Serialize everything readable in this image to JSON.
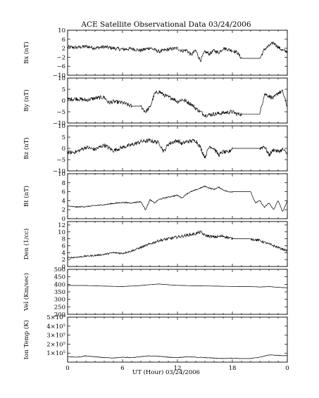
{
  "chart_data": {
    "type": "line",
    "title": "ACE Satellite Observational Data   03/24/2006",
    "xlabel": "UT (Hour)   03/24/2006",
    "x_ticks": [
      "0",
      "6",
      "12",
      "18",
      "0"
    ],
    "xlim": [
      0,
      24
    ],
    "panels": [
      {
        "ylabel": "Bx (nT)",
        "ylim": [
          -10,
          10
        ],
        "y_tick_values": [
          -10,
          -6,
          -2,
          2,
          6,
          10
        ],
        "y_tick_labels": [
          "−10",
          "−6",
          "−2",
          "2",
          "6",
          "10"
        ],
        "series": [
          {
            "x": [
              0,
              1,
              2,
              3,
              4,
              5,
              6,
              7,
              8,
              9,
              10,
              11,
              12,
              12.5,
              13,
              13.5,
              14,
              14.5,
              15,
              15.5,
              16,
              16.5,
              17,
              17.5,
              18,
              18.5,
              19,
              20,
              21,
              21.5,
              22,
              22.5,
              23,
              23.5,
              24
            ],
            "y": [
              2.5,
              2.3,
              2.8,
              2.1,
              2.6,
              2.0,
              1.5,
              1.8,
              1.0,
              2.2,
              0.5,
              1.5,
              2.0,
              0.8,
              1.2,
              -1.0,
              1.0,
              -3.5,
              0.5,
              -0.5,
              1.0,
              0.0,
              2.0,
              1.5,
              1.0,
              0.2,
              -2.5,
              -2.5,
              -2.5,
              1.5,
              3.0,
              4.5,
              2.5,
              1.0,
              0.5
            ]
          }
        ]
      },
      {
        "ylabel": "By (nT)",
        "ylim": [
          -10,
          10
        ],
        "y_tick_values": [
          -10,
          -5,
          0,
          5,
          10
        ],
        "y_tick_labels": [
          "−10",
          "−5",
          "0",
          "5",
          "10"
        ],
        "series": [
          {
            "x": [
              0,
              1,
              2,
              3,
              4,
              4.5,
              5,
              6,
              7,
              8,
              8.5,
              9,
              9.5,
              10,
              10.5,
              11,
              11.5,
              12,
              12.5,
              13,
              13.5,
              14,
              15,
              16,
              17,
              18,
              18.5,
              19,
              20,
              21,
              21.5,
              22,
              22.5,
              23,
              23.5,
              24
            ],
            "y": [
              0.5,
              0.8,
              0.2,
              1.0,
              1.5,
              -1.0,
              -0.5,
              -1.0,
              -2.5,
              -2.5,
              -5.0,
              -3.0,
              3.0,
              4.0,
              2.5,
              1.5,
              1.0,
              -0.5,
              0.5,
              -0.5,
              -1.5,
              -3.5,
              -6.5,
              -6.0,
              -5.5,
              -5.0,
              -6.0,
              -6.0,
              -6.0,
              -6.0,
              3.0,
              2.0,
              1.0,
              3.5,
              4.0,
              -3.0
            ]
          }
        ]
      },
      {
        "ylabel": "Bz (nT)",
        "ylim": [
          -10,
          10
        ],
        "y_tick_values": [
          -10,
          -5,
          0,
          5,
          10
        ],
        "y_tick_labels": [
          "−10",
          "−5",
          "0",
          "5",
          "10"
        ],
        "series": [
          {
            "x": [
              0,
              1,
              2,
              3,
              4,
              5,
              6,
              7,
              8,
              9,
              10,
              10.5,
              11,
              12,
              12.5,
              13,
              14,
              14.5,
              15,
              15.5,
              16,
              16.5,
              17,
              17.5,
              18,
              19,
              20,
              21,
              21.5,
              22,
              22.5,
              23,
              23.5,
              24
            ],
            "y": [
              -2.0,
              -1.5,
              0.5,
              -0.5,
              1.5,
              -1.0,
              0.5,
              1.5,
              3.0,
              3.5,
              2.5,
              -1.5,
              2.0,
              3.5,
              2.0,
              3.0,
              3.5,
              0.5,
              -4.0,
              1.0,
              0.0,
              -3.0,
              -1.5,
              -2.0,
              0.0,
              0.0,
              0.0,
              0.0,
              1.0,
              -3.0,
              -0.5,
              -1.5,
              -0.5,
              -2.5
            ]
          }
        ]
      },
      {
        "ylabel": "Bt (nT)",
        "ylim": [
          0,
          10
        ],
        "y_tick_values": [
          0,
          2,
          4,
          6,
          8,
          10
        ],
        "y_tick_labels": [
          "0",
          "2",
          "4",
          "6",
          "8",
          "10"
        ],
        "series": [
          {
            "x": [
              0,
              1,
              2,
              3,
              4,
              5,
              6,
              7,
              8,
              8.5,
              9,
              9.5,
              10,
              11,
              12,
              12.5,
              13,
              13.5,
              14,
              15,
              15.5,
              16,
              16.5,
              17,
              17.5,
              18,
              19,
              20,
              20.5,
              21,
              21.5,
              22,
              22.5,
              23,
              23.5,
              24
            ],
            "y": [
              2.8,
              2.6,
              2.7,
              2.9,
              3.1,
              3.4,
              3.6,
              3.5,
              3.8,
              2.0,
              4.2,
              3.5,
              4.3,
              4.8,
              5.2,
              4.6,
              5.5,
              6.0,
              6.4,
              7.2,
              6.8,
              6.5,
              7.0,
              6.4,
              6.0,
              6.0,
              6.0,
              6.0,
              3.5,
              4.0,
              2.5,
              3.5,
              2.0,
              4.0,
              1.5,
              4.0
            ]
          }
        ]
      },
      {
        "ylabel": "Den (1/cc)",
        "ylim": [
          0,
          13
        ],
        "y_tick_values": [
          0,
          2,
          4,
          6,
          8,
          10,
          12
        ],
        "y_tick_labels": [
          "0",
          "2",
          "4",
          "6",
          "8",
          "10",
          "12"
        ],
        "series": [
          {
            "x": [
              0,
              1,
              2,
              3,
              4,
              5,
              6,
              7,
              8,
              9,
              10,
              11,
              12,
              13,
              14,
              14.5,
              15,
              16,
              17,
              18,
              19,
              20,
              21,
              22,
              23,
              24
            ],
            "y": [
              2.5,
              2.7,
              3.0,
              3.2,
              3.5,
              4.0,
              3.8,
              4.5,
              5.5,
              6.5,
              7.5,
              8.0,
              8.5,
              9.0,
              9.5,
              10.0,
              9.0,
              8.5,
              8.8,
              8.0,
              8.0,
              8.0,
              7.5,
              6.5,
              5.5,
              4.5
            ]
          }
        ]
      },
      {
        "ylabel": "Vel (Km/sec)",
        "ylim": [
          200,
          500
        ],
        "y_tick_values": [
          200,
          250,
          300,
          350,
          400,
          450,
          500
        ],
        "y_tick_labels": [
          "200",
          "250",
          "300",
          "350",
          "400",
          "450",
          "500"
        ],
        "series": [
          {
            "x": [
              0,
              2,
              4,
              6,
              8,
              9,
              10,
              11,
              12,
              14,
              16,
              18,
              19,
              20,
              21,
              22,
              23,
              24
            ],
            "y": [
              392,
              392,
              388,
              385,
              392,
              398,
              402,
              397,
              393,
              390,
              388,
              386,
              385,
              385,
              382,
              385,
              380,
              377
            ]
          }
        ]
      },
      {
        "ylabel": "Ion Temp (K)",
        "ylim": [
          0,
          500000
        ],
        "y_tick_values": [
          100000,
          200000,
          300000,
          400000,
          500000
        ],
        "y_tick_labels": [
          "1×10⁵",
          "2×10⁵",
          "3×10⁵",
          "4×10⁵",
          "5×10⁵"
        ],
        "series": [
          {
            "x": [
              0,
              1,
              2,
              3,
              4,
              5,
              6,
              7,
              8,
              9,
              10,
              11,
              12,
              13,
              14,
              15,
              16,
              17,
              18,
              19,
              20,
              21,
              22,
              23,
              24
            ],
            "y": [
              60000,
              55000,
              70000,
              60000,
              50000,
              45000,
              55000,
              50000,
              60000,
              70000,
              65000,
              55000,
              50000,
              60000,
              55000,
              50000,
              45000,
              40000,
              45000,
              40000,
              40000,
              55000,
              80000,
              75000,
              70000
            ]
          }
        ]
      }
    ]
  }
}
